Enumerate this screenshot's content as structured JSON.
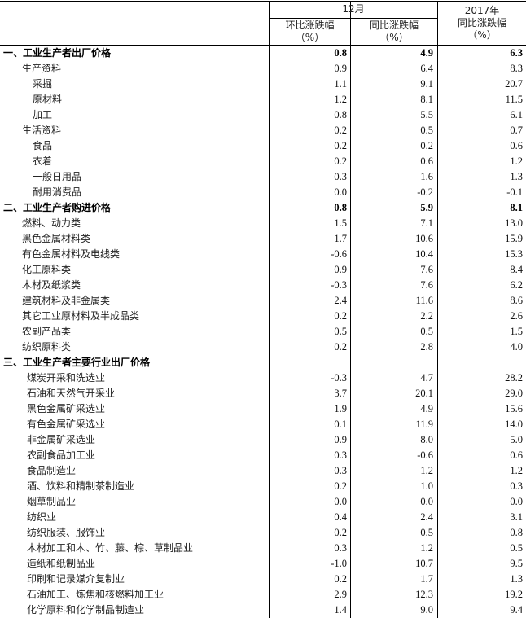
{
  "header": {
    "group_label": "12月",
    "col1_line1": "环比涨跌幅",
    "col1_line2": "（%）",
    "col2_line1": "同比涨跌幅",
    "col2_line2": "（%）",
    "col3_line0": "2017年",
    "col3_line1": "同比涨跌幅",
    "col3_line2": "（%）"
  },
  "rows": [
    {
      "label": "一、工业生产者出厂价格",
      "level": 0,
      "bold": true,
      "mom": "0.8",
      "yoy": "4.9",
      "year": "6.3"
    },
    {
      "label": "生产资料",
      "level": 1,
      "mom": "0.9",
      "yoy": "6.4",
      "year": "8.3"
    },
    {
      "label": "采掘",
      "level": 2,
      "mom": "1.1",
      "yoy": "9.1",
      "year": "20.7"
    },
    {
      "label": "原材料",
      "level": 2,
      "mom": "1.2",
      "yoy": "8.1",
      "year": "11.5"
    },
    {
      "label": "加工",
      "level": 2,
      "mom": "0.8",
      "yoy": "5.5",
      "year": "6.1"
    },
    {
      "label": "生活资料",
      "level": 1,
      "mom": "0.2",
      "yoy": "0.5",
      "year": "0.7"
    },
    {
      "label": "食品",
      "level": 2,
      "mom": "0.2",
      "yoy": "0.2",
      "year": "0.6"
    },
    {
      "label": "衣着",
      "level": 2,
      "mom": "0.2",
      "yoy": "0.6",
      "year": "1.2"
    },
    {
      "label": "一般日用品",
      "level": 2,
      "mom": "0.3",
      "yoy": "1.6",
      "year": "1.3"
    },
    {
      "label": "耐用消费品",
      "level": 2,
      "mom": "0.0",
      "yoy": "-0.2",
      "year": "-0.1"
    },
    {
      "label": "二、工业生产者购进价格",
      "level": 0,
      "bold": true,
      "mom": "0.8",
      "yoy": "5.9",
      "year": "8.1"
    },
    {
      "label": "燃料、动力类",
      "level": 1,
      "mom": "1.5",
      "yoy": "7.1",
      "year": "13.0"
    },
    {
      "label": "黑色金属材料类",
      "level": 1,
      "mom": "1.7",
      "yoy": "10.6",
      "year": "15.9"
    },
    {
      "label": "有色金属材料及电线类",
      "level": 1,
      "mom": "-0.6",
      "yoy": "10.4",
      "year": "15.3"
    },
    {
      "label": "化工原料类",
      "level": 1,
      "mom": "0.9",
      "yoy": "7.6",
      "year": "8.4"
    },
    {
      "label": "木材及纸浆类",
      "level": 1,
      "mom": "-0.3",
      "yoy": "7.6",
      "year": "6.2"
    },
    {
      "label": "建筑材料及非金属类",
      "level": 1,
      "mom": "2.4",
      "yoy": "11.6",
      "year": "8.6"
    },
    {
      "label": "其它工业原材料及半成品类",
      "level": 1,
      "mom": "0.2",
      "yoy": "2.2",
      "year": "2.6"
    },
    {
      "label": "农副产品类",
      "level": 1,
      "mom": "0.5",
      "yoy": "0.5",
      "year": "1.5"
    },
    {
      "label": "纺织原料类",
      "level": 1,
      "mom": "0.2",
      "yoy": "2.8",
      "year": "4.0"
    },
    {
      "label": "三、工业生产者主要行业出厂价格",
      "level": 0,
      "bold": true,
      "mom": "",
      "yoy": "",
      "year": ""
    },
    {
      "label": "煤炭开采和洗选业",
      "level": 3,
      "mom": "-0.3",
      "yoy": "4.7",
      "year": "28.2"
    },
    {
      "label": "石油和天然气开采业",
      "level": 3,
      "mom": "3.7",
      "yoy": "20.1",
      "year": "29.0"
    },
    {
      "label": "黑色金属矿采选业",
      "level": 3,
      "mom": "1.9",
      "yoy": "4.9",
      "year": "15.6"
    },
    {
      "label": "有色金属矿采选业",
      "level": 3,
      "mom": "0.1",
      "yoy": "11.9",
      "year": "14.0"
    },
    {
      "label": "非金属矿采选业",
      "level": 3,
      "mom": "0.9",
      "yoy": "8.0",
      "year": "5.0"
    },
    {
      "label": "农副食品加工业",
      "level": 3,
      "mom": "0.3",
      "yoy": "-0.6",
      "year": "0.6"
    },
    {
      "label": "食品制造业",
      "level": 3,
      "mom": "0.3",
      "yoy": "1.2",
      "year": "1.2"
    },
    {
      "label": "酒、饮料和精制茶制造业",
      "level": 3,
      "mom": "0.2",
      "yoy": "1.0",
      "year": "0.3"
    },
    {
      "label": "烟草制品业",
      "level": 3,
      "mom": "0.0",
      "yoy": "0.0",
      "year": "0.0"
    },
    {
      "label": "纺织业",
      "level": 3,
      "mom": "0.4",
      "yoy": "2.4",
      "year": "3.1"
    },
    {
      "label": "纺织服装、服饰业",
      "level": 3,
      "mom": "0.2",
      "yoy": "0.5",
      "year": "0.8"
    },
    {
      "label": "木材加工和木、竹、藤、棕、草制品业",
      "level": 3,
      "mom": "0.3",
      "yoy": "1.2",
      "year": "0.5"
    },
    {
      "label": "造纸和纸制品业",
      "level": 3,
      "mom": "-1.0",
      "yoy": "10.7",
      "year": "9.5"
    },
    {
      "label": "印刷和记录媒介复制业",
      "level": 3,
      "mom": "0.2",
      "yoy": "1.7",
      "year": "1.3"
    },
    {
      "label": "石油加工、炼焦和核燃料加工业",
      "level": 3,
      "mom": "2.9",
      "yoy": "12.3",
      "year": "19.2"
    },
    {
      "label": "化学原料和化学制品制造业",
      "level": 3,
      "mom": "1.4",
      "yoy": "9.0",
      "year": "9.4"
    }
  ]
}
